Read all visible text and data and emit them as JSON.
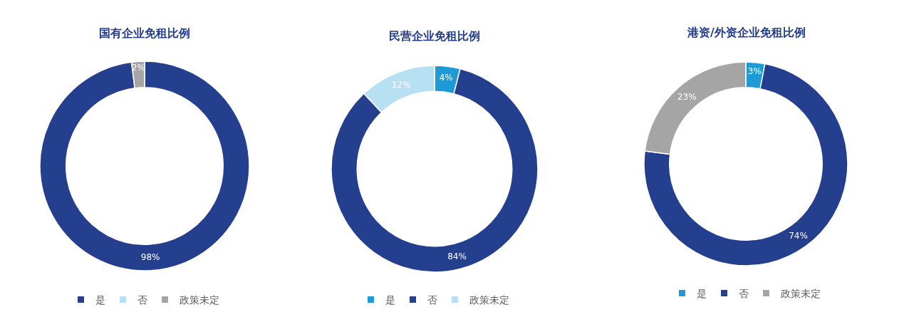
{
  "chart_data": [
    {
      "type": "donut",
      "title": "国有企业免租比例",
      "categories": [
        "是",
        "否",
        "政策未定"
      ],
      "values": [
        98,
        0,
        2
      ],
      "colors": [
        "#253f8f",
        "#b7e1f3",
        "#a5a5a5"
      ],
      "value_labels": [
        "98%",
        null,
        "2%"
      ],
      "legend": "bottom"
    },
    {
      "type": "donut",
      "title": "民营企业免租比例",
      "categories": [
        "是",
        "否",
        "政策未定"
      ],
      "values": [
        4,
        84,
        12
      ],
      "colors": [
        "#1e9bd7",
        "#253f8f",
        "#b7e1f3"
      ],
      "value_labels": [
        "4%",
        "84%",
        "12%"
      ],
      "legend": "bottom"
    },
    {
      "type": "donut",
      "title": "港资/外资企业免租比例",
      "categories": [
        "是",
        "否",
        "政策未定"
      ],
      "values": [
        3,
        74,
        23
      ],
      "colors": [
        "#1e9bd7",
        "#253f8f",
        "#a5a5a5"
      ],
      "value_labels": [
        "3%",
        "74%",
        "23%"
      ],
      "legend": "bottom"
    }
  ]
}
